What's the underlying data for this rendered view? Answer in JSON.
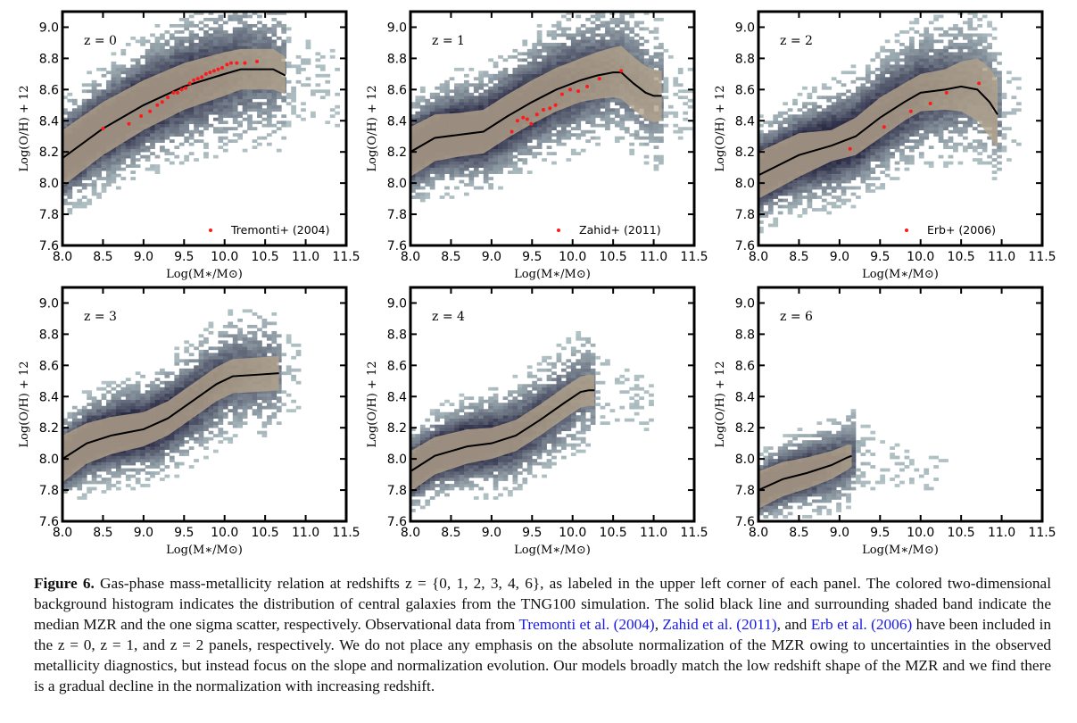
{
  "chart_data": [
    {
      "type": "heatmap+line+scatter",
      "label": "z = 0",
      "xlabel": "Log(M∗/M⊙)",
      "ylabel": "Log(O/H) + 12",
      "xlim": [
        8.0,
        11.5
      ],
      "ylim": [
        7.6,
        9.1
      ],
      "xticks": [
        "8.0",
        "8.5",
        "9.0",
        "9.5",
        "10.0",
        "10.5",
        "11.0",
        "11.5"
      ],
      "yticks": [
        "7.6",
        "7.8",
        "8.0",
        "8.2",
        "8.4",
        "8.6",
        "8.8",
        "9.0"
      ],
      "histogram": {
        "x_range": [
          8.0,
          11.4
        ],
        "spread": 0.32
      },
      "median": {
        "x": [
          8.0,
          8.5,
          9.0,
          9.5,
          10.0,
          10.2,
          10.5,
          10.6,
          10.75
        ],
        "y": [
          8.16,
          8.35,
          8.5,
          8.62,
          8.7,
          8.73,
          8.73,
          8.73,
          8.69
        ]
      },
      "sigma": [
        0.18,
        0.17,
        0.16,
        0.15,
        0.14,
        0.13,
        0.13,
        0.13,
        0.12
      ],
      "observations": {
        "name": "Tremonti+ (2004)",
        "x": [
          8.5,
          8.82,
          8.97,
          9.08,
          9.17,
          9.23,
          9.3,
          9.37,
          9.42,
          9.47,
          9.52,
          9.57,
          9.62,
          9.67,
          9.72,
          9.77,
          9.82,
          9.87,
          9.92,
          9.97,
          10.03,
          10.08,
          10.15,
          10.25,
          10.4
        ],
        "y": [
          8.35,
          8.38,
          8.43,
          8.46,
          8.5,
          8.52,
          8.55,
          8.58,
          8.58,
          8.6,
          8.61,
          8.64,
          8.66,
          8.67,
          8.68,
          8.7,
          8.71,
          8.72,
          8.73,
          8.74,
          8.76,
          8.77,
          8.77,
          8.77,
          8.78
        ]
      }
    },
    {
      "type": "heatmap+line+scatter",
      "label": "z = 1",
      "xlabel": "Log(M∗/M⊙)",
      "ylabel": "Log(O/H) + 12",
      "xlim": [
        8.0,
        11.5
      ],
      "ylim": [
        7.6,
        9.1
      ],
      "xticks": [
        "8.0",
        "8.5",
        "9.0",
        "9.5",
        "10.0",
        "10.5",
        "11.0",
        "11.5"
      ],
      "yticks": [
        "7.6",
        "7.8",
        "8.0",
        "8.2",
        "8.4",
        "8.6",
        "8.8",
        "9.0"
      ],
      "histogram": {
        "x_range": [
          8.0,
          11.5
        ],
        "spread": 0.3
      },
      "median": {
        "x": [
          8.0,
          8.3,
          8.6,
          8.9,
          9.2,
          9.5,
          9.8,
          10.1,
          10.3,
          10.5,
          10.6,
          10.75,
          10.9,
          11.0,
          11.1
        ],
        "y": [
          8.2,
          8.29,
          8.31,
          8.33,
          8.43,
          8.52,
          8.6,
          8.66,
          8.69,
          8.71,
          8.71,
          8.64,
          8.58,
          8.56,
          8.56
        ]
      },
      "sigma": [
        0.16,
        0.15,
        0.14,
        0.14,
        0.14,
        0.14,
        0.14,
        0.14,
        0.15,
        0.16,
        0.17,
        0.17,
        0.17,
        0.17,
        0.16
      ],
      "observations": {
        "name": "Zahid+ (2011)",
        "x": [
          9.25,
          9.32,
          9.39,
          9.44,
          9.49,
          9.56,
          9.64,
          9.72,
          9.79,
          9.87,
          9.97,
          10.07,
          10.18,
          10.33,
          10.6
        ],
        "y": [
          8.33,
          8.4,
          8.42,
          8.41,
          8.38,
          8.44,
          8.47,
          8.48,
          8.5,
          8.57,
          8.6,
          8.59,
          8.62,
          8.67,
          8.72
        ]
      }
    },
    {
      "type": "heatmap+line+scatter",
      "label": "z = 2",
      "xlabel": "Log(M∗/M⊙)",
      "ylabel": "Log(O/H) + 12",
      "xlim": [
        8.0,
        11.5
      ],
      "ylim": [
        7.6,
        9.1
      ],
      "xticks": [
        "8.0",
        "8.5",
        "9.0",
        "9.5",
        "10.0",
        "10.5",
        "11.0",
        "11.5"
      ],
      "yticks": [
        "7.6",
        "7.8",
        "8.0",
        "8.2",
        "8.4",
        "8.6",
        "8.8",
        "9.0"
      ],
      "histogram": {
        "x_range": [
          8.0,
          11.2
        ],
        "spread": 0.3
      },
      "median": {
        "x": [
          8.0,
          8.5,
          8.9,
          9.2,
          9.5,
          9.8,
          10.0,
          10.3,
          10.5,
          10.7,
          10.85,
          10.95
        ],
        "y": [
          8.05,
          8.18,
          8.24,
          8.3,
          8.42,
          8.52,
          8.58,
          8.6,
          8.62,
          8.6,
          8.52,
          8.44
        ],
        "sigma_note": ""
      },
      "sigma": [
        0.15,
        0.14,
        0.1,
        0.12,
        0.13,
        0.12,
        0.12,
        0.13,
        0.16,
        0.2,
        0.22,
        0.22
      ],
      "observations": {
        "name": "Erb+ (2006)",
        "x": [
          9.13,
          9.55,
          9.88,
          10.12,
          10.32,
          10.72
        ],
        "y": [
          8.22,
          8.36,
          8.46,
          8.51,
          8.58,
          8.64
        ]
      }
    },
    {
      "type": "heatmap+line",
      "label": "z = 3",
      "xlabel": "Log(M∗/M⊙)",
      "ylabel": "Log(O/H) + 12",
      "xlim": [
        8.0,
        11.5
      ],
      "ylim": [
        7.6,
        9.1
      ],
      "xticks": [
        "8.0",
        "8.5",
        "9.0",
        "9.5",
        "10.0",
        "10.5",
        "11.0",
        "11.5"
      ],
      "yticks": [
        "7.6",
        "7.8",
        "8.0",
        "8.2",
        "8.4",
        "8.6",
        "8.8",
        "9.0"
      ],
      "histogram": {
        "x_range": [
          8.0,
          10.9
        ],
        "spread": 0.26
      },
      "median": {
        "x": [
          8.0,
          8.3,
          8.6,
          9.0,
          9.3,
          9.6,
          9.9,
          10.1,
          10.4,
          10.67
        ],
        "y": [
          8.0,
          8.1,
          8.15,
          8.19,
          8.26,
          8.37,
          8.48,
          8.53,
          8.54,
          8.55
        ]
      },
      "sigma": [
        0.15,
        0.13,
        0.12,
        0.11,
        0.11,
        0.11,
        0.11,
        0.11,
        0.11,
        0.11
      ]
    },
    {
      "type": "heatmap+line",
      "label": "z = 4",
      "xlabel": "Log(M∗/M⊙)",
      "ylabel": "Log(O/H) + 12",
      "xlim": [
        8.0,
        11.5
      ],
      "ylim": [
        7.6,
        9.1
      ],
      "xticks": [
        "8.0",
        "8.5",
        "9.0",
        "9.5",
        "10.0",
        "10.5",
        "11.0",
        "11.5"
      ],
      "yticks": [
        "7.6",
        "7.8",
        "8.0",
        "8.2",
        "8.4",
        "8.6",
        "8.8",
        "9.0"
      ],
      "histogram": {
        "x_range": [
          8.0,
          11.0
        ],
        "spread": 0.24
      },
      "median": {
        "x": [
          8.0,
          8.3,
          8.7,
          9.0,
          9.3,
          9.6,
          9.9,
          10.1,
          10.2,
          10.27
        ],
        "y": [
          7.92,
          8.02,
          8.08,
          8.1,
          8.15,
          8.25,
          8.36,
          8.43,
          8.44,
          8.44
        ]
      },
      "sigma": [
        0.13,
        0.12,
        0.11,
        0.1,
        0.1,
        0.1,
        0.1,
        0.1,
        0.1,
        0.1
      ]
    },
    {
      "type": "heatmap+line",
      "label": "z = 6",
      "xlabel": "Log(M∗/M⊙)",
      "ylabel": "Log(O/H) + 12",
      "xlim": [
        8.0,
        11.5
      ],
      "ylim": [
        7.6,
        9.1
      ],
      "xticks": [
        "8.0",
        "8.5",
        "9.0",
        "9.5",
        "10.0",
        "10.5",
        "11.0",
        "11.5"
      ],
      "yticks": [
        "7.6",
        "7.8",
        "8.0",
        "8.2",
        "8.4",
        "8.6",
        "8.8",
        "9.0"
      ],
      "histogram": {
        "x_range": [
          8.0,
          10.3
        ],
        "spread": 0.2
      },
      "median": {
        "x": [
          8.0,
          8.3,
          8.6,
          8.9,
          9.1,
          9.15
        ],
        "y": [
          7.8,
          7.87,
          7.91,
          7.96,
          8.01,
          8.02
        ]
      },
      "sigma": [
        0.12,
        0.11,
        0.1,
        0.09,
        0.08,
        0.07
      ]
    }
  ],
  "colors": {
    "band": "#b3a38c",
    "median": "#000000",
    "observations": "#ff1a1a",
    "hist_dark": "#2b2b45",
    "hist_light": "#c8dcdb",
    "link": "#1a1ae6"
  },
  "caption": {
    "figure_label": "Figure 6.",
    "t1": " Gas-phase mass-metallicity relation at redshifts z = {0, 1, 2, 3, 4, 6}, as labeled in the upper left corner of each panel. The colored two-dimensional background histogram indicates the distribution of central galaxies from the TNG100 simulation. The solid black line and surrounding shaded band indicate the median MZR and the one sigma scatter, respectively. Observational data from ",
    "link1": "Tremonti et al. (2004)",
    "t2": ", ",
    "link2": "Zahid et al. (2011)",
    "t3": ", and ",
    "link3": "Erb et al. (2006)",
    "t4": " have been included in the z = 0, z = 1, and z = 2 panels, respectively. We do not place any emphasis on the absolute normalization of the MZR owing to uncertainties in the observed metallicity diagnostics, but instead focus on the slope and normalization evolution. Our models broadly match the low redshift shape of the MZR and we find there is a gradual decline in the normalization with increasing redshift."
  }
}
